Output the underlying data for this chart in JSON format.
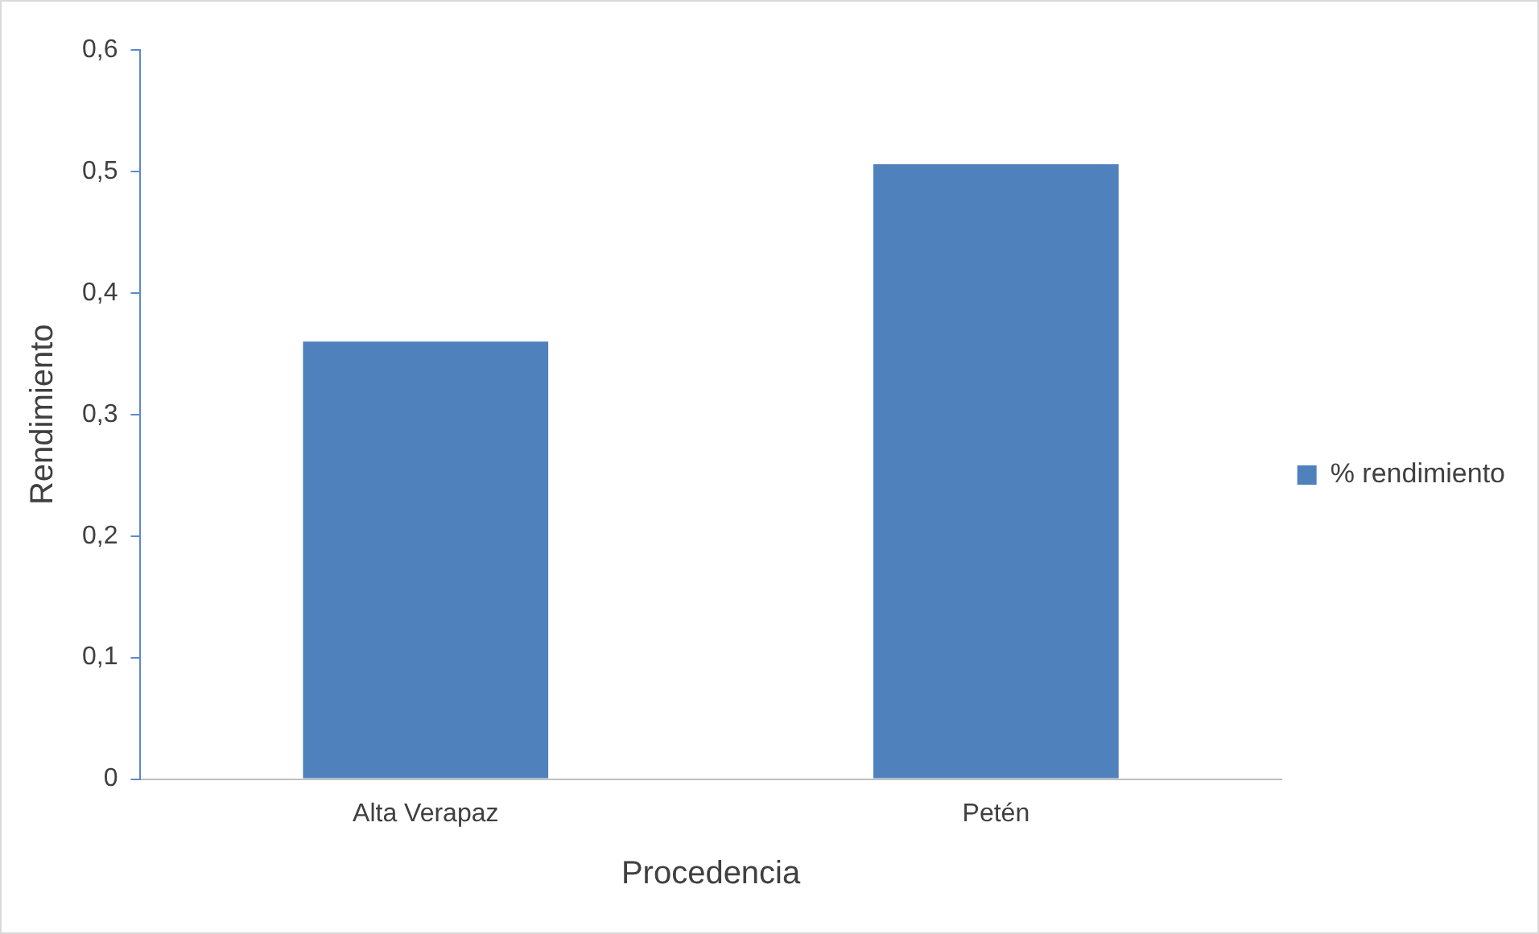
{
  "chart_data": {
    "type": "bar",
    "xlabel": "Procedencia",
    "ylabel": "Rendimiento",
    "categories": [
      "Alta Verapaz",
      "Petén"
    ],
    "series": [
      {
        "name": "% rendimiento",
        "color": "#4f81bd",
        "values": [
          0.36,
          0.506
        ]
      }
    ],
    "ylim": [
      0,
      0.6
    ],
    "yticks": [
      {
        "value": 0,
        "label": "0"
      },
      {
        "value": 0.1,
        "label": "0,1"
      },
      {
        "value": 0.2,
        "label": "0,2"
      },
      {
        "value": 0.3,
        "label": "0,3"
      },
      {
        "value": 0.4,
        "label": "0,4"
      },
      {
        "value": 0.5,
        "label": "0,5"
      },
      {
        "value": 0.6,
        "label": "0,6"
      }
    ],
    "grid": false,
    "legend": "right"
  }
}
